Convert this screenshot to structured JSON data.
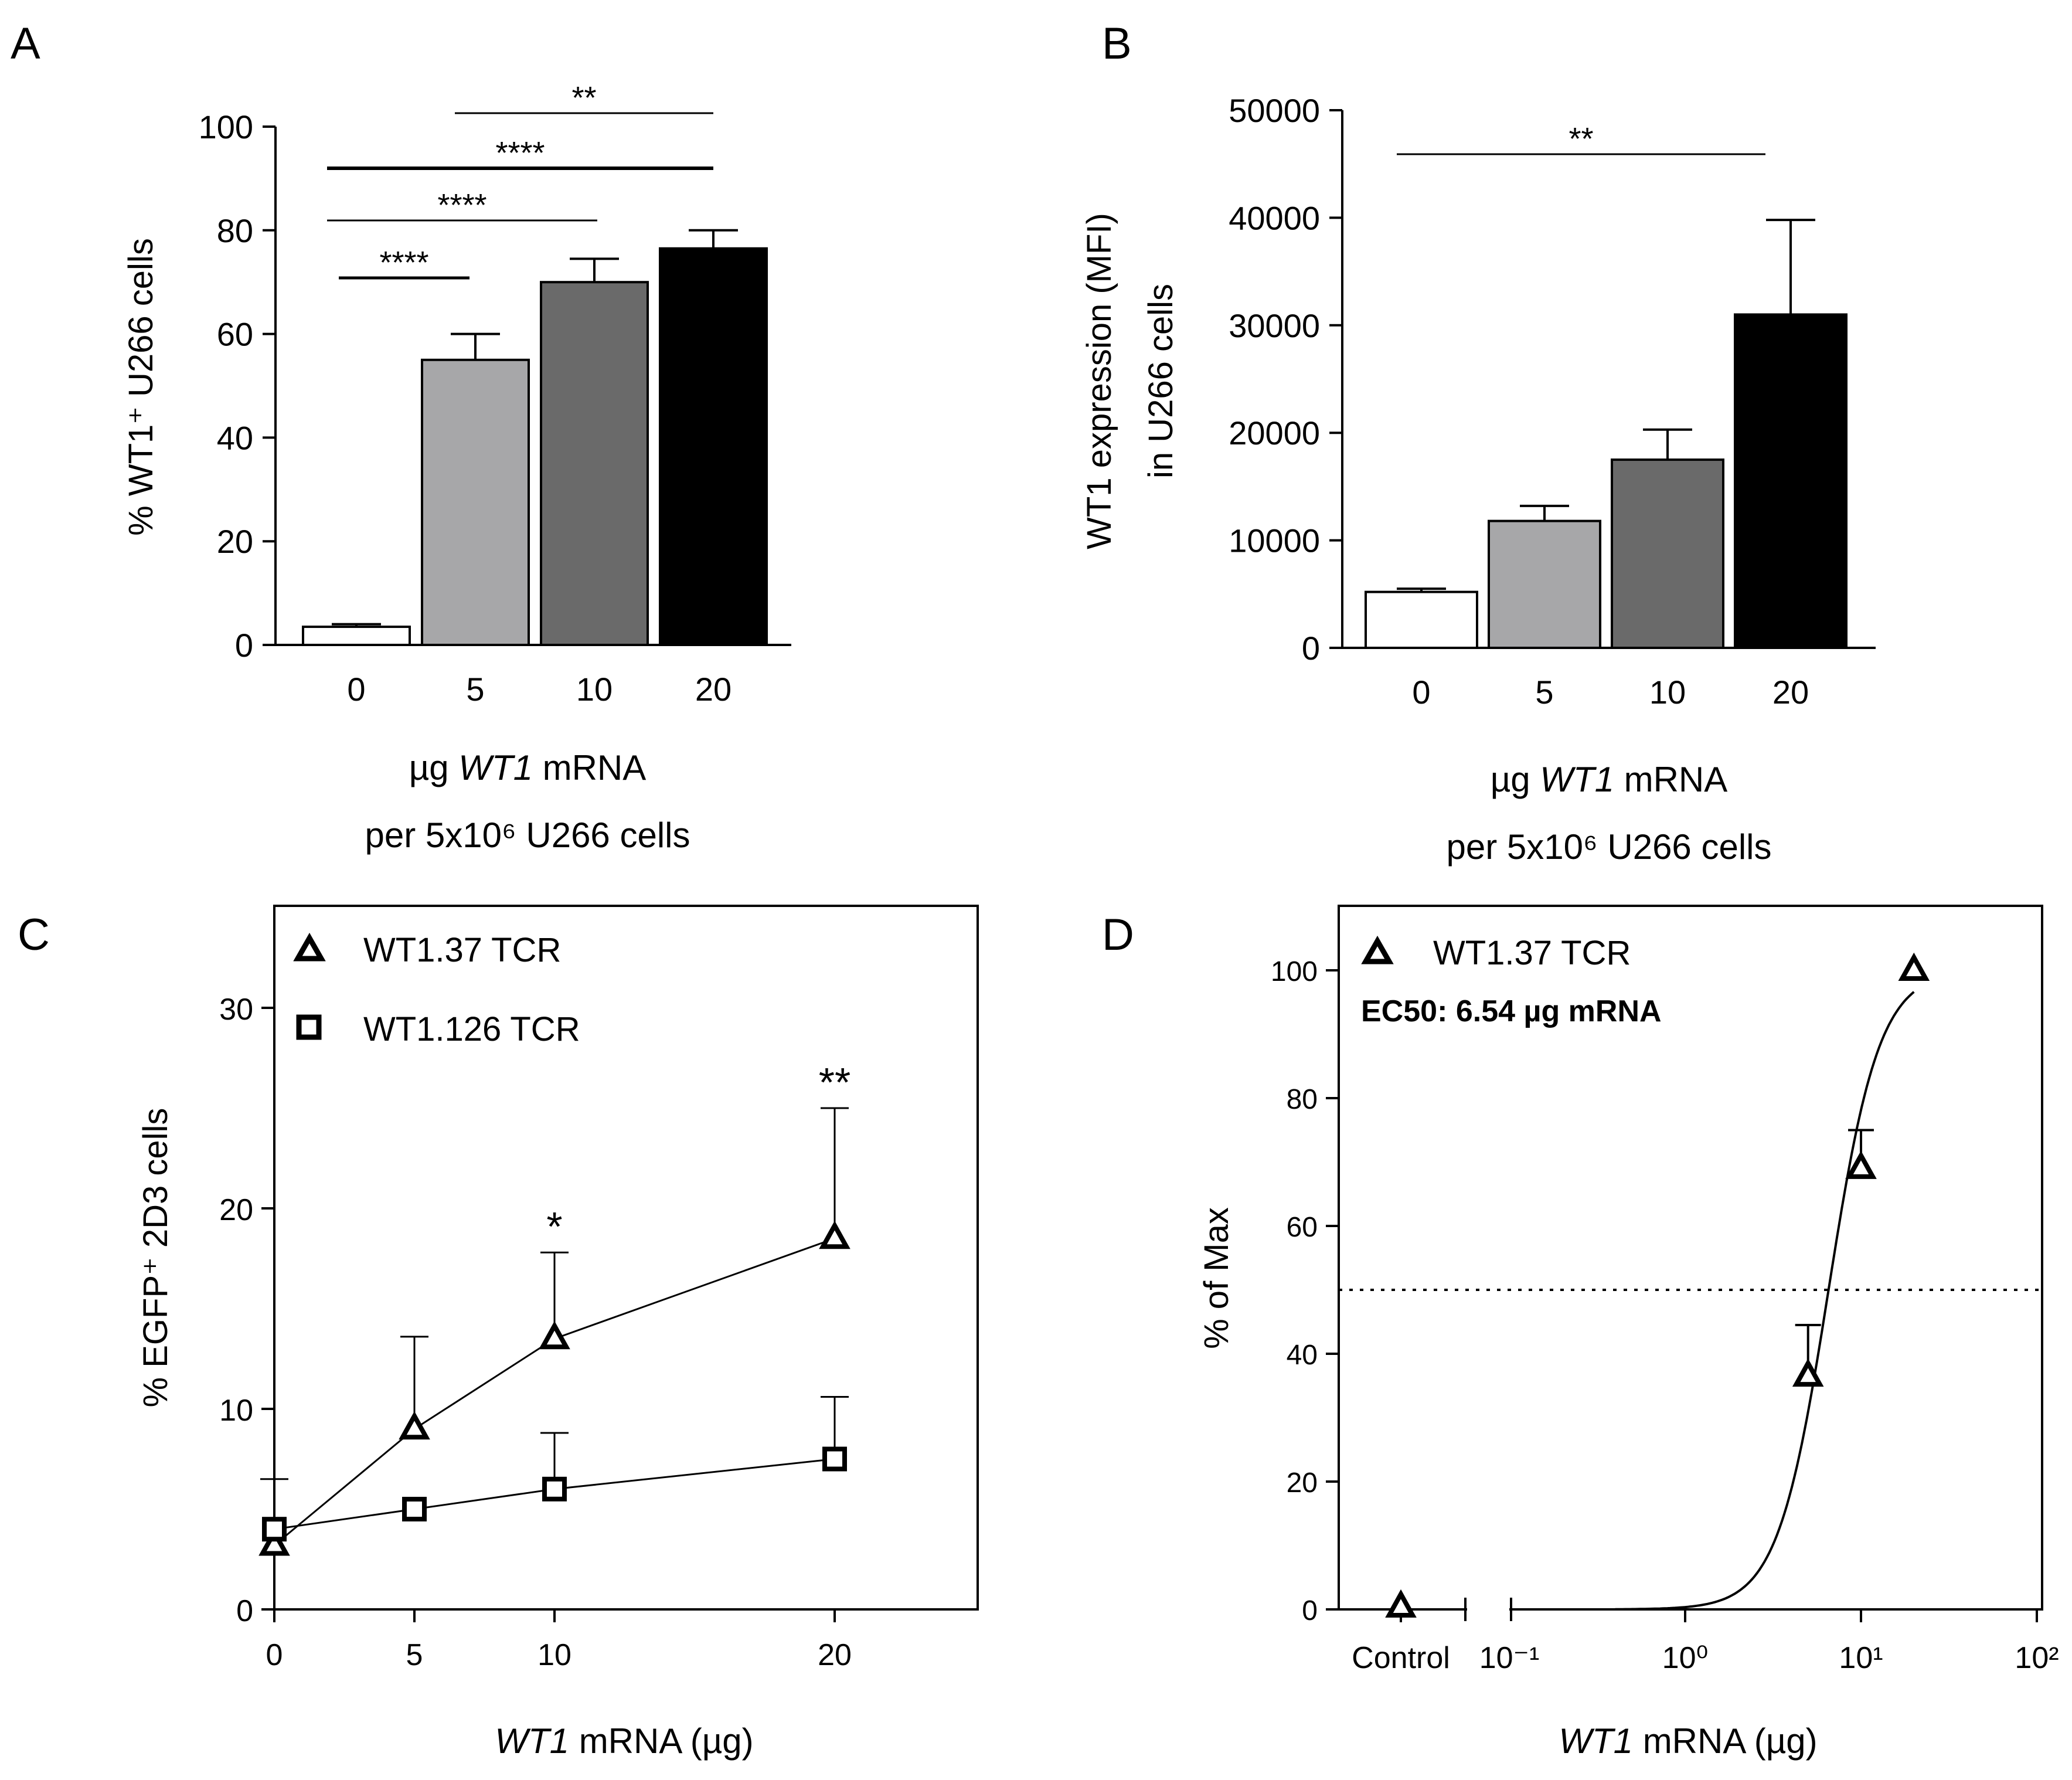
{
  "panels": {
    "A": {
      "label": "A"
    },
    "B": {
      "label": "B"
    },
    "C": {
      "label": "C"
    },
    "D": {
      "label": "D"
    }
  },
  "colors": {
    "bar_0": "#ffffff",
    "bar_5": "#a7a7a9",
    "bar_10": "#6a6a6a",
    "bar_20": "#000000"
  },
  "chart_data": [
    {
      "panel": "A",
      "type": "bar",
      "title": "",
      "categories": [
        "0",
        "5",
        "10",
        "20"
      ],
      "values": [
        3.5,
        55,
        70,
        76.5
      ],
      "errors": [
        0.5,
        5,
        4.5,
        3.5
      ],
      "ylabel": "% WT1⁺ U266 cells",
      "xlabel": [
        "µg WT1 mRNA",
        "per 5x10⁶ U266 cells"
      ],
      "ylim": [
        0,
        100
      ],
      "yticks": [
        0,
        20,
        40,
        60,
        80,
        100
      ],
      "significance": [
        {
          "from": "0",
          "to": "5",
          "label": "****"
        },
        {
          "from": "0",
          "to": "10",
          "label": "****"
        },
        {
          "from": "0",
          "to": "20",
          "label": "****"
        },
        {
          "from": "5",
          "to": "20",
          "label": "**"
        }
      ]
    },
    {
      "panel": "B",
      "type": "bar",
      "title": "",
      "categories": [
        "0",
        "5",
        "10",
        "20"
      ],
      "values": [
        5200,
        11800,
        17500,
        31000
      ],
      "errors": [
        300,
        1400,
        2800,
        8800
      ],
      "ylabel": [
        "WT1 expression (MFI)",
        "in U266 cells"
      ],
      "xlabel": [
        "µg WT1 mRNA",
        "per 5x10⁶ U266 cells"
      ],
      "ylim": [
        0,
        50000
      ],
      "yticks": [
        0,
        10000,
        20000,
        30000,
        40000,
        50000
      ],
      "significance": [
        {
          "from": "0",
          "to": "20",
          "label": "**"
        }
      ]
    },
    {
      "panel": "C",
      "type": "line",
      "title": "",
      "x": [
        0,
        5,
        10,
        20
      ],
      "xlim": [
        0,
        25
      ],
      "xticks": [
        0,
        5,
        10,
        20
      ],
      "ylim": [
        0,
        35
      ],
      "yticks": [
        0,
        10,
        20,
        30
      ],
      "ylabel": "% EGFP⁺ 2D3 cells",
      "xlabel": "WT1 mRNA (µg)",
      "series": [
        {
          "name": "WT1.37 TCR",
          "marker": "triangle",
          "values": [
            3.2,
            9,
            13.5,
            18.5
          ],
          "errors": [
            3.3,
            4.6,
            4.3,
            6.5
          ]
        },
        {
          "name": "WT1.126 TCR",
          "marker": "square",
          "values": [
            4,
            5,
            6,
            7.5
          ],
          "errors": [
            0,
            0,
            2.8,
            3.1
          ]
        }
      ],
      "annotations": [
        {
          "x": 10,
          "label": "*"
        },
        {
          "x": 20,
          "label": "**"
        }
      ]
    },
    {
      "panel": "D",
      "type": "scatter",
      "title": "",
      "legend": "WT1.37 TCR",
      "ec50_text": "EC50: 6.54 µg mRNA",
      "ec50": 6.54,
      "xscale": "log",
      "control_label": "Control",
      "x_tick_labels": [
        "10⁻¹",
        "10⁰",
        "10¹",
        "10²"
      ],
      "control_value": 0,
      "points": [
        {
          "x": 5,
          "y": 36.5,
          "error": 8
        },
        {
          "x": 10,
          "y": 69,
          "error": 6
        },
        {
          "x": 20,
          "y": 100,
          "error": 0
        }
      ],
      "fit": {
        "model": "sigmoid",
        "ec50": 6.54,
        "hill": 3,
        "top": 100,
        "bottom": 0,
        "x_range": [
          0.4,
          20
        ]
      },
      "reference_line_y": 50,
      "ylim": [
        0,
        110
      ],
      "yticks": [
        0,
        20,
        40,
        60,
        80,
        100
      ],
      "ylabel": "% of Max",
      "xlabel": "WT1 mRNA (µg)"
    }
  ]
}
